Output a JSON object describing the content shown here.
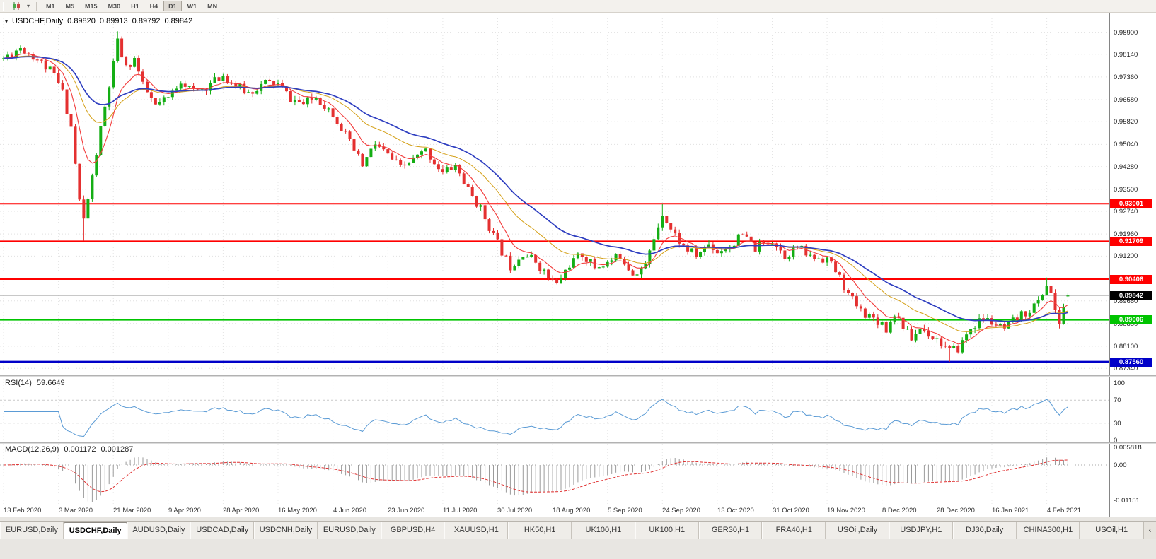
{
  "toolbar": {
    "timeframes": [
      "M1",
      "M5",
      "M15",
      "M30",
      "H1",
      "H4",
      "D1",
      "W1",
      "MN"
    ],
    "active": "D1"
  },
  "chart_header": {
    "dropdown_icon": "▾",
    "symbol": "USDCHF,Daily",
    "open": "0.89820",
    "high": "0.89913",
    "low": "0.89792",
    "close": "0.89842"
  },
  "price_axis": [
    "0.98900",
    "0.98140",
    "0.97360",
    "0.96580",
    "0.95820",
    "0.95040",
    "0.94280",
    "0.93500",
    "0.92740",
    "0.91960",
    "0.91200",
    "0.90420",
    "0.89660",
    "0.88880",
    "0.88100",
    "0.87340"
  ],
  "levels": [
    {
      "price": 0.93001,
      "label": "0.93001",
      "color": "#ff0000",
      "width": 2
    },
    {
      "price": 0.91709,
      "label": "0.91709",
      "color": "#ff0000",
      "width": 2
    },
    {
      "price": 0.90406,
      "label": "0.90406",
      "color": "#ff0000",
      "width": 2
    },
    {
      "price": 0.89006,
      "label": "0.89006",
      "color": "#00c400",
      "width": 2
    },
    {
      "price": 0.8756,
      "label": "0.87560",
      "color": "#0000c8",
      "width": 3
    }
  ],
  "current_price": {
    "price": 0.89842,
    "label": "0.89842",
    "tag_color": "#000000",
    "line_color": "#b5b5b5"
  },
  "dates": [
    "13 Feb 2020",
    "3 Mar 2020",
    "21 Mar 2020",
    "9 Apr 2020",
    "28 Apr 2020",
    "16 May 2020",
    "4 Jun 2020",
    "23 Jun 2020",
    "11 Jul 2020",
    "30 Jul 2020",
    "18 Aug 2020",
    "5 Sep 2020",
    "24 Sep 2020",
    "13 Oct 2020",
    "31 Oct 2020",
    "19 Nov 2020",
    "8 Dec 2020",
    "28 Dec 2020",
    "16 Jan 2021",
    "4 Feb 2021"
  ],
  "rsi_panel": {
    "name": "RSI(14)",
    "value": "59.6649",
    "axis": [
      "100",
      "70",
      "30",
      "0"
    ]
  },
  "macd_panel": {
    "name": "MACD(12,26,9)",
    "main": "0.001172",
    "signal": "0.001287",
    "axis": [
      "0.005818",
      "0.00",
      "-0.01151"
    ]
  },
  "tabs": {
    "items": [
      "EURUSD,Daily",
      "USDCHF,Daily",
      "AUDUSD,Daily",
      "USDCAD,Daily",
      "USDCNH,Daily",
      "EURUSD,Daily",
      "GBPUSD,H4",
      "XAUUSD,H1",
      "HK50,H1",
      "UK100,H1",
      "UK100,H1",
      "GER30,H1",
      "FRA40,H1",
      "USOil,Daily",
      "USDJPY,H1",
      "DJ30,Daily",
      "CHINA300,H1",
      "USOil,H1"
    ],
    "active_index": 1,
    "scroll_label": "‹"
  },
  "colors": {
    "up": "#14ae14",
    "down": "#e43030",
    "rsi": "#5b9bd5",
    "macd_hist": "#9b9b9b",
    "macd_signal": "#e03131"
  },
  "chart_data": {
    "type": "candlestick",
    "symbol": "USDCHF",
    "timeframe": "Daily",
    "x_labels": [
      "13 Feb 2020",
      "3 Mar 2020",
      "21 Mar 2020",
      "9 Apr 2020",
      "28 Apr 2020",
      "16 May 2020",
      "4 Jun 2020",
      "23 Jun 2020",
      "11 Jul 2020",
      "30 Jul 2020",
      "18 Aug 2020",
      "5 Sep 2020",
      "24 Sep 2020",
      "13 Oct 2020",
      "31 Oct 2020",
      "19 Nov 2020",
      "8 Dec 2020",
      "28 Dec 2020",
      "16 Jan 2021",
      "4 Feb 2021"
    ],
    "y_range": [
      0.8715,
      0.994
    ],
    "num_candles": 253,
    "candles_per_label": 13,
    "seed": 11,
    "noise": 0.0016,
    "wick": 0.0014,
    "anchors": [
      [
        0,
        0.98
      ],
      [
        4,
        0.9838
      ],
      [
        8,
        0.9798
      ],
      [
        12,
        0.9742
      ],
      [
        14,
        0.9682
      ],
      [
        16,
        0.9565
      ],
      [
        18,
        0.931
      ],
      [
        19,
        0.9245
      ],
      [
        21,
        0.939
      ],
      [
        23,
        0.9555
      ],
      [
        25,
        0.9705
      ],
      [
        27,
        0.9855
      ],
      [
        29,
        0.9765
      ],
      [
        31,
        0.98
      ],
      [
        33,
        0.9705
      ],
      [
        36,
        0.9635
      ],
      [
        39,
        0.9662
      ],
      [
        42,
        0.9726
      ],
      [
        45,
        0.9685
      ],
      [
        48,
        0.9702
      ],
      [
        52,
        0.9742
      ],
      [
        55,
        0.9705
      ],
      [
        58,
        0.9682
      ],
      [
        62,
        0.9716
      ],
      [
        65,
        0.9712
      ],
      [
        68,
        0.9662
      ],
      [
        71,
        0.9642
      ],
      [
        74,
        0.9668
      ],
      [
        78,
        0.9612
      ],
      [
        80,
        0.9562
      ],
      [
        83,
        0.9482
      ],
      [
        85,
        0.9432
      ],
      [
        88,
        0.9506
      ],
      [
        91,
        0.9466
      ],
      [
        94,
        0.9422
      ],
      [
        97,
        0.9452
      ],
      [
        100,
        0.9482
      ],
      [
        104,
        0.9406
      ],
      [
        107,
        0.9432
      ],
      [
        110,
        0.9346
      ],
      [
        113,
        0.9282
      ],
      [
        116,
        0.9192
      ],
      [
        118,
        0.9135
      ],
      [
        120,
        0.9085
      ],
      [
        123,
        0.9132
      ],
      [
        126,
        0.9102
      ],
      [
        129,
        0.9046
      ],
      [
        131,
        0.9022
      ],
      [
        134,
        0.9092
      ],
      [
        137,
        0.9126
      ],
      [
        140,
        0.9082
      ],
      [
        143,
        0.9096
      ],
      [
        146,
        0.9122
      ],
      [
        149,
        0.9062
      ],
      [
        152,
        0.9086
      ],
      [
        154,
        0.9182
      ],
      [
        156,
        0.9272
      ],
      [
        158,
        0.9212
      ],
      [
        161,
        0.9152
      ],
      [
        164,
        0.9122
      ],
      [
        167,
        0.9162
      ],
      [
        169,
        0.9136
      ],
      [
        172,
        0.9156
      ],
      [
        175,
        0.9192
      ],
      [
        178,
        0.9146
      ],
      [
        182,
        0.9176
      ],
      [
        185,
        0.9122
      ],
      [
        188,
        0.9152
      ],
      [
        191,
        0.9116
      ],
      [
        195,
        0.9112
      ],
      [
        198,
        0.9046
      ],
      [
        200,
        0.8986
      ],
      [
        203,
        0.8932
      ],
      [
        206,
        0.8906
      ],
      [
        208,
        0.8892
      ],
      [
        209,
        0.8868
      ],
      [
        211,
        0.8926
      ],
      [
        214,
        0.8856
      ],
      [
        215,
        0.8836
      ],
      [
        217,
        0.8872
      ],
      [
        221,
        0.8836
      ],
      [
        224,
        0.8792
      ],
      [
        226,
        0.8802
      ],
      [
        229,
        0.8872
      ],
      [
        232,
        0.8906
      ],
      [
        234,
        0.8892
      ],
      [
        237,
        0.8866
      ],
      [
        240,
        0.8906
      ],
      [
        243,
        0.8936
      ],
      [
        245,
        0.8962
      ],
      [
        247,
        0.9022
      ],
      [
        248,
        0.8992
      ],
      [
        249,
        0.8922
      ],
      [
        250,
        0.8892
      ],
      [
        251,
        0.8945
      ],
      [
        252,
        0.89842
      ]
    ],
    "overrides": {
      "19": {
        "l": 0.9172
      },
      "27": {
        "h": 0.9893
      },
      "156": {
        "h": 0.9301
      },
      "224": {
        "l": 0.8757
      },
      "247": {
        "h": 0.9046
      },
      "250": {
        "l": 0.8871
      },
      "252": {
        "o": 0.8982,
        "h": 0.89913,
        "l": 0.89792,
        "c": 0.89842
      }
    },
    "last_candle": {
      "open": 0.8982,
      "high": 0.89913,
      "low": 0.89792,
      "close": 0.89842
    },
    "moving_averages": [
      {
        "period": 21,
        "color": "#d4a017",
        "width": 1
      },
      {
        "period": 8,
        "color": "#f23b3b",
        "width": 1.1
      },
      {
        "period": 34,
        "color": "#2e3ec0",
        "width": 1.7
      }
    ],
    "horizontal_levels": [
      0.93001,
      0.91709,
      0.90406,
      0.89006,
      0.8756
    ],
    "indicators": {
      "rsi": {
        "period": 14,
        "current": 59.6649,
        "levels": [
          70,
          30
        ],
        "scale": [
          0,
          100
        ]
      },
      "macd": {
        "fast": 12,
        "slow": 26,
        "signal": 9,
        "current_main": 0.001172,
        "current_signal": 0.001287,
        "axis_max": 0.005818,
        "axis_min": -0.01151
      }
    }
  }
}
